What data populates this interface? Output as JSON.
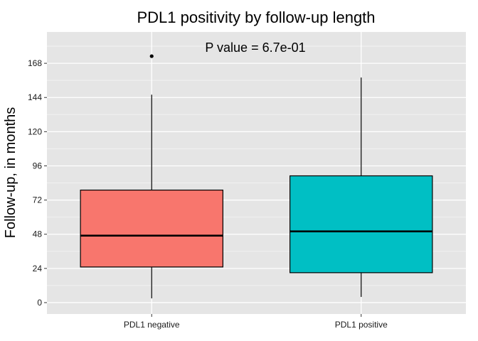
{
  "chart_data": {
    "type": "boxplot",
    "title": "PDL1 positivity by follow-up length",
    "xlabel": "",
    "ylabel": "Follow-up, in months",
    "annotation": "P value = 6.7e-01",
    "categories": [
      "PDL1 negative",
      "PDL1 positive"
    ],
    "ylim": [
      -8,
      190
    ],
    "yticks": [
      0,
      24,
      48,
      72,
      96,
      120,
      144,
      168
    ],
    "ytick_labels": [
      "0",
      "24",
      "48",
      "72",
      "96",
      "120",
      "144",
      "168"
    ],
    "boxes": [
      {
        "category": "PDL1 negative",
        "whisker_low": 3,
        "q1": 25,
        "median": 47,
        "q3": 79,
        "whisker_high": 146,
        "outliers": [
          173
        ],
        "color": "#F8766D"
      },
      {
        "category": "PDL1 positive",
        "whisker_low": 4,
        "q1": 21,
        "median": 50,
        "q3": 89,
        "whisker_high": 158,
        "outliers": [],
        "color": "#00BFC4"
      }
    ],
    "grid": true,
    "legend": "none",
    "panel_color": "#E5E5E5",
    "grid_color": "#FFFFFF"
  }
}
